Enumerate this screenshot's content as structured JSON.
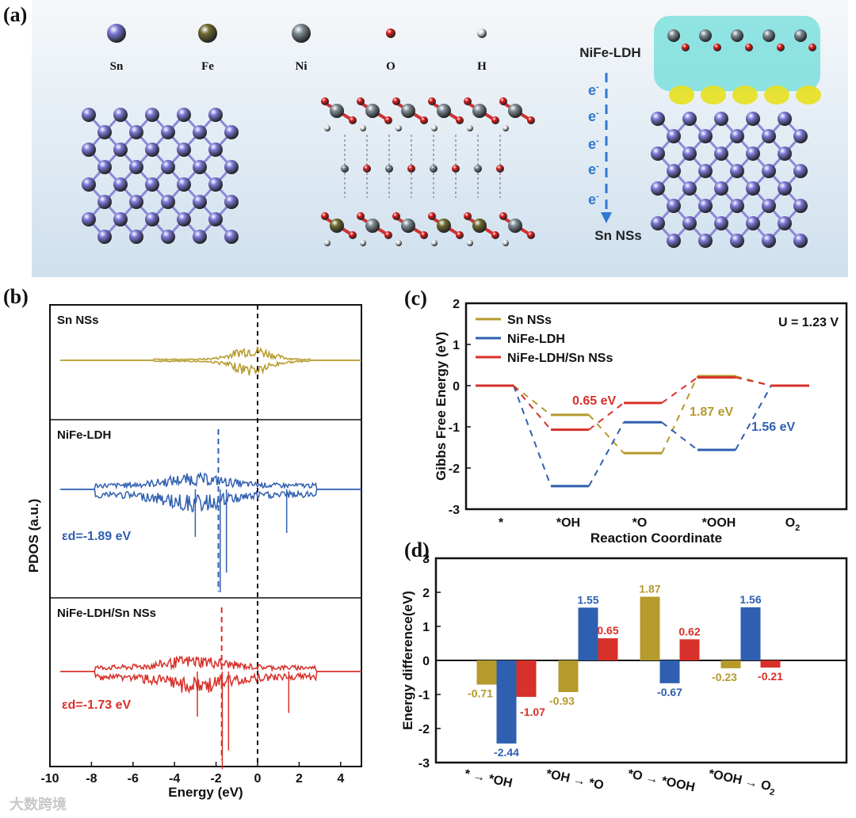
{
  "panels": {
    "a": "(a)",
    "b": "(b)",
    "c": "(c)",
    "d": "(d)"
  },
  "panel_a": {
    "legend": [
      {
        "label": "Sn",
        "color": "#7b78d8"
      },
      {
        "label": "Fe",
        "color": "#6e6a2e"
      },
      {
        "label": "Ni",
        "color": "#7d8a93"
      },
      {
        "label": "O",
        "color": "#e01a1a"
      },
      {
        "label": "H",
        "color": "#e8e8e8"
      }
    ],
    "top_label": "NiFe-LDH",
    "bottom_label": "Sn NSs",
    "electron": "e",
    "electron_sup": "-"
  },
  "watermark": "大数跨境",
  "chart_data": [
    {
      "type": "line",
      "panel": "b",
      "ylabel": "PDOS (a.u.)",
      "xlabel": "Energy (eV)",
      "xlim": [
        -10,
        5
      ],
      "xticks": [
        -10,
        -8,
        -6,
        -4,
        -2,
        0,
        2,
        4
      ],
      "fermi_level": 0,
      "subplots": [
        {
          "name": "Sn NSs",
          "color": "#b59a2c"
        },
        {
          "name": "NiFe-LDH",
          "color": "#2f5fb0",
          "d_band_center": -1.89,
          "label": "εd=-1.89 eV"
        },
        {
          "name": "NiFe-LDH/Sn NSs",
          "color": "#d8302a",
          "d_band_center": -1.73,
          "label": "εd=-1.73 eV"
        }
      ]
    },
    {
      "type": "line",
      "panel": "c",
      "title": "",
      "xlabel": "Reaction Coordinate",
      "ylabel": "Gibbs Free Energy (eV)",
      "ylim": [
        -3,
        2
      ],
      "yticks": [
        2,
        1,
        0,
        -1,
        -2,
        -3
      ],
      "categories": [
        "*",
        "*OH",
        "*O",
        "*OOH",
        "O2"
      ],
      "annotation": "U = 1.23 V",
      "series": [
        {
          "name": "Sn NSs",
          "color": "#b59a2c",
          "values": [
            0,
            -0.71,
            -1.64,
            0.23,
            0
          ]
        },
        {
          "name": "NiFe-LDH",
          "color": "#2f5fb0",
          "values": [
            0,
            -2.44,
            -0.89,
            -1.56,
            0
          ]
        },
        {
          "name": "NiFe-LDH/Sn NSs",
          "color": "#d8302a",
          "values": [
            0,
            -1.07,
            -0.42,
            0.2,
            0
          ]
        }
      ],
      "labels": [
        {
          "text": "0.65 eV",
          "color": "#d8302a"
        },
        {
          "text": "1.87 eV",
          "color": "#b59a2c"
        },
        {
          "text": "1.56 eV",
          "color": "#2f5fb0"
        }
      ]
    },
    {
      "type": "bar",
      "panel": "d",
      "ylabel": "Energy difference(eV)",
      "ylim": [
        -3,
        3
      ],
      "yticks": [
        3,
        2,
        1,
        0,
        -1,
        -2,
        -3
      ],
      "categories": [
        "* → *OH",
        "*OH → *O",
        "*O → *OOH",
        "*OOH → O2"
      ],
      "series": [
        {
          "name": "Sn NSs",
          "color": "#b59a2c",
          "values": [
            -0.71,
            -0.93,
            1.87,
            -0.23
          ]
        },
        {
          "name": "NiFe-LDH",
          "color": "#2f5fb0",
          "values": [
            -2.44,
            1.55,
            -0.67,
            1.56
          ]
        },
        {
          "name": "NiFe-LDH/Sn NSs",
          "color": "#d8302a",
          "values": [
            -1.07,
            0.65,
            0.62,
            -0.21
          ]
        }
      ]
    }
  ]
}
